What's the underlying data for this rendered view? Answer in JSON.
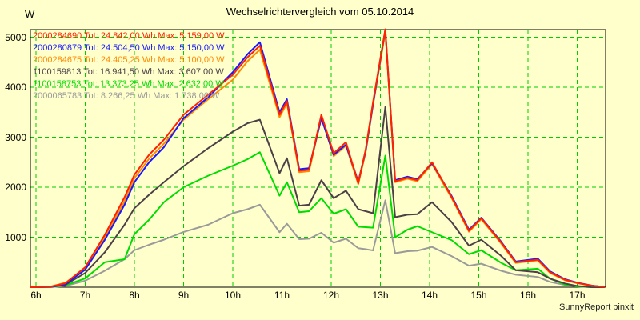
{
  "title": "Wechselrichtervergleich vom 05.10.2014",
  "y_unit_label": "W",
  "footer": "SunnyReport pinxit",
  "colors": {
    "background": "#FFFFCC",
    "grid": "#00CC00",
    "axis": "#000000"
  },
  "legend": [
    {
      "label": "2000284690 Tot: 24.842,00 Wh Max: 5.159,00 W",
      "color": "#FF2200"
    },
    {
      "label": "2000280879 Tot: 24.504,50 Wh Max: 5.150,00 W",
      "color": "#1818FF"
    },
    {
      "label": "2000284675 Tot: 24.405,25 Wh Max: 5.100,00 W",
      "color": "#FF8A00"
    },
    {
      "label": "1100159813 Tot: 16.941,50 Wh Max: 3.607,00 W",
      "color": "#4B4046"
    },
    {
      "label": "1100158753 Tot: 13.373,25 Wh Max: 2.632,00 W",
      "color": "#00DC00"
    },
    {
      "label": "2000065783 Tot: 8.266,25 Wh Max: 1.738,00 W",
      "color": "#9A9A9A"
    }
  ],
  "chart_data": {
    "type": "line",
    "title": "Wechselrichtervergleich vom 05.10.2014",
    "xlabel": "",
    "ylabel": "W",
    "xlim": [
      5.89,
      17.58
    ],
    "ylim": [
      0,
      5150
    ],
    "grid": true,
    "legend_position": "top-left",
    "x_tick_values": [
      6,
      7,
      8,
      9,
      10,
      11,
      12,
      13,
      14,
      15,
      16,
      17
    ],
    "x_ticks": [
      "6h",
      "7h",
      "8h",
      "9h",
      "10h",
      "11h",
      "12h",
      "13h",
      "14h",
      "15h",
      "16h",
      "17h"
    ],
    "y_ticks": [
      1000,
      2000,
      3000,
      4000,
      5000
    ],
    "x": [
      5.9,
      6.3,
      6.6,
      7.0,
      7.4,
      7.8,
      8.0,
      8.3,
      8.6,
      9.0,
      9.5,
      10.0,
      10.3,
      10.55,
      10.95,
      11.1,
      11.35,
      11.55,
      11.8,
      12.05,
      12.3,
      12.55,
      12.7,
      12.85,
      13.1,
      13.3,
      13.55,
      13.75,
      14.05,
      14.45,
      14.8,
      15.05,
      15.45,
      15.75,
      16.2,
      16.45,
      16.75,
      17.0,
      17.3,
      17.55
    ],
    "series": [
      {
        "name": "2000284690",
        "total_wh": "24.842,00",
        "max_w": "5.159,00",
        "color": "#FF2200",
        "values": [
          0,
          10,
          80,
          400,
          1050,
          1800,
          2250,
          2650,
          2950,
          3450,
          3850,
          4250,
          4600,
          4830,
          3450,
          3720,
          2330,
          2350,
          3450,
          2680,
          2900,
          2080,
          2750,
          3700,
          5159,
          2120,
          2190,
          2140,
          2500,
          1800,
          1130,
          1380,
          900,
          500,
          550,
          300,
          150,
          85,
          30,
          5
        ]
      },
      {
        "name": "2000280879",
        "total_wh": "24.504,50",
        "max_w": "5.150,00",
        "color": "#1818FF",
        "values": [
          0,
          8,
          60,
          350,
          950,
          1650,
          2100,
          2500,
          2800,
          3380,
          3800,
          4300,
          4660,
          4900,
          3500,
          3760,
          2360,
          2380,
          3380,
          2650,
          2850,
          2110,
          2720,
          3660,
          5150,
          2140,
          2210,
          2160,
          2480,
          1820,
          1150,
          1390,
          915,
          515,
          570,
          315,
          160,
          90,
          32,
          5
        ]
      },
      {
        "name": "2000284675",
        "total_wh": "24.405,25",
        "max_w": "5.100,00",
        "color": "#FF8A00",
        "values": [
          0,
          15,
          90,
          380,
          1000,
          1720,
          2180,
          2570,
          2870,
          3350,
          3760,
          4150,
          4520,
          4750,
          3400,
          3680,
          2300,
          2320,
          3400,
          2620,
          2830,
          2060,
          2700,
          3640,
          5100,
          2100,
          2170,
          2120,
          2460,
          1780,
          1110,
          1360,
          880,
          485,
          535,
          285,
          140,
          80,
          28,
          8
        ]
      },
      {
        "name": "1100159813",
        "total_wh": "16.941,50",
        "max_w": "3.607,00",
        "color": "#4B4046",
        "values": [
          0,
          5,
          50,
          285,
          700,
          1250,
          1580,
          1850,
          2100,
          2420,
          2780,
          3110,
          3280,
          3350,
          2280,
          2580,
          1630,
          1650,
          2140,
          1780,
          1930,
          1560,
          1520,
          1480,
          3607,
          1400,
          1450,
          1460,
          1700,
          1300,
          830,
          950,
          630,
          340,
          300,
          170,
          75,
          25,
          0,
          0
        ]
      },
      {
        "name": "1100158753",
        "total_wh": "13.373,25",
        "max_w": "2.632,00",
        "color": "#00DC00",
        "values": [
          0,
          5,
          40,
          175,
          500,
          560,
          1060,
          1350,
          1700,
          2000,
          2230,
          2430,
          2560,
          2700,
          1830,
          2100,
          1500,
          1520,
          1780,
          1470,
          1560,
          1210,
          1200,
          1190,
          2632,
          1000,
          1150,
          1220,
          1100,
          940,
          660,
          740,
          490,
          340,
          370,
          170,
          55,
          15,
          0,
          0
        ]
      },
      {
        "name": "2000065783",
        "total_wh": "8.266,25",
        "max_w": "1.738,00",
        "color": "#9A9A9A",
        "values": [
          0,
          0,
          25,
          130,
          330,
          560,
          740,
          850,
          950,
          1105,
          1250,
          1480,
          1560,
          1650,
          1100,
          1270,
          960,
          970,
          1090,
          890,
          970,
          780,
          760,
          735,
          1738,
          680,
          720,
          730,
          805,
          620,
          430,
          470,
          330,
          250,
          205,
          105,
          45,
          15,
          0,
          0
        ]
      }
    ]
  }
}
